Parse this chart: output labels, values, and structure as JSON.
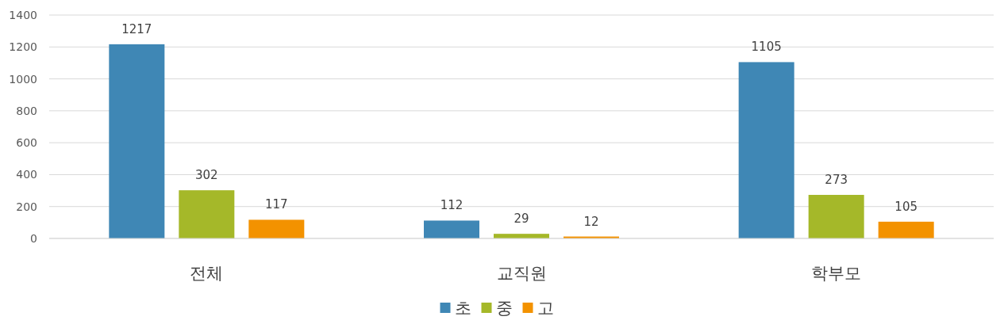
{
  "chart_data": {
    "type": "bar",
    "categories": [
      "전체",
      "교직원",
      "학부모"
    ],
    "series": [
      {
        "name": "초",
        "color": "#3f87b5",
        "values": [
          1217,
          112,
          1105
        ]
      },
      {
        "name": "중",
        "color": "#a5b829",
        "values": [
          302,
          29,
          273
        ]
      },
      {
        "name": "고",
        "color": "#f39200",
        "values": [
          117,
          12,
          105
        ]
      }
    ],
    "ylim": [
      0,
      1400
    ],
    "yticks": [
      0,
      200,
      400,
      600,
      800,
      1000,
      1200,
      1400
    ],
    "grid": "y",
    "legend": "bottom",
    "data_labels": true
  }
}
